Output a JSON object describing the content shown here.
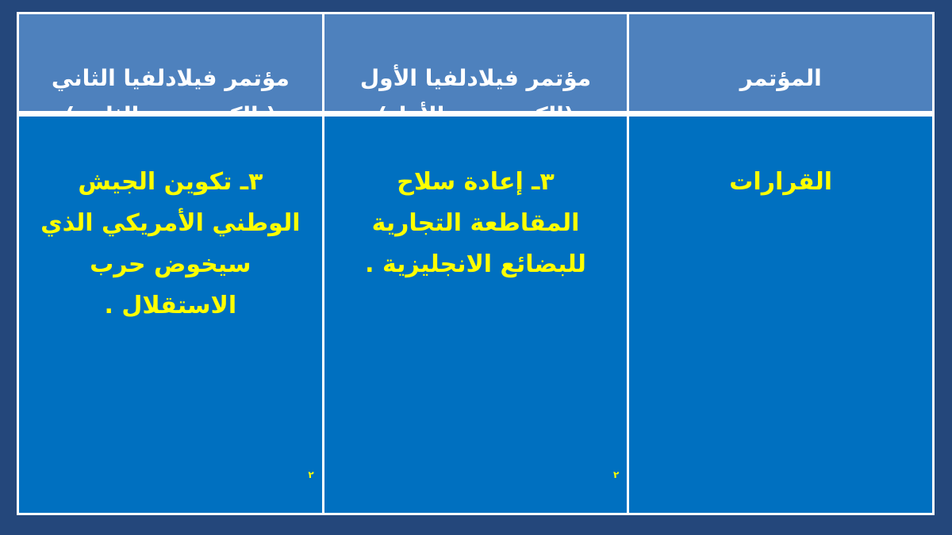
{
  "slide": {
    "background_color": "#24477B"
  },
  "table": {
    "header_fill": "#4E81BD",
    "body_fill": "#0070C0",
    "grid_color": "#FFFFFF",
    "header_text_color": "#FFFFFF",
    "body_text_color": "#FFFF00",
    "columns": [
      {
        "id": "conference",
        "header": "المؤتمر",
        "body": "القرارات",
        "footnote": ""
      },
      {
        "id": "philadelphia-first",
        "header": "مؤتمر فيلادلفيا الأول\n(الكونجرس الأول)",
        "body": "٣ـ إعادة سلاح\nالمقاطعة التجارية\nللبضائع الانجليزية .",
        "footnote": "٢"
      },
      {
        "id": "philadelphia-second",
        "header": "مؤتمر فيلادلفيا الثاني\n( الكونجرس الثاني)",
        "body": "٣ـ تكوين الجيش\nالوطني الأمريكي الذي\nسيخوض حرب\nالاستقلال .",
        "footnote": "٢"
      }
    ]
  }
}
